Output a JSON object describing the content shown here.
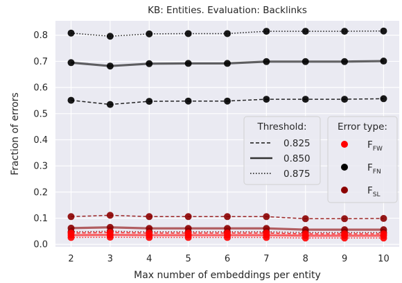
{
  "chart_data": {
    "type": "line",
    "title": "KB: Entities. Evaluation: Backlinks",
    "xlabel": "Max number of embeddings per entity",
    "ylabel": "Fraction of errors",
    "x": [
      2,
      3,
      4,
      5,
      6,
      7,
      8,
      9,
      10
    ],
    "xlim": [
      1.6,
      10.4
    ],
    "ylim": [
      -0.01,
      0.855
    ],
    "yticks": [
      "0.0",
      "0.1",
      "0.2",
      "0.3",
      "0.4",
      "0.5",
      "0.6",
      "0.7",
      "0.8"
    ],
    "grid": true,
    "background": "#eaeaf2",
    "error_types": [
      {
        "key": "FW",
        "base": "F",
        "sub": "FW",
        "color": "#ff0000"
      },
      {
        "key": "FN",
        "base": "F",
        "sub": "FN",
        "color": "#000000"
      },
      {
        "key": "SL",
        "base": "F",
        "sub": "SL",
        "color": "#8b0000"
      }
    ],
    "thresholds": [
      {
        "label": "0.825",
        "style": "dashed"
      },
      {
        "label": "0.850",
        "style": "solid"
      },
      {
        "label": "0.875",
        "style": "dotted"
      }
    ],
    "series": [
      {
        "error_type": "FN",
        "threshold": "0.825",
        "values": [
          0.551,
          0.535,
          0.547,
          0.548,
          0.548,
          0.555,
          0.555,
          0.555,
          0.557
        ]
      },
      {
        "error_type": "FN",
        "threshold": "0.850",
        "values": [
          0.695,
          0.682,
          0.691,
          0.692,
          0.692,
          0.699,
          0.699,
          0.699,
          0.701
        ]
      },
      {
        "error_type": "FN",
        "threshold": "0.875",
        "values": [
          0.808,
          0.796,
          0.805,
          0.806,
          0.806,
          0.815,
          0.815,
          0.815,
          0.816
        ]
      },
      {
        "error_type": "SL",
        "threshold": "0.825",
        "values": [
          0.106,
          0.111,
          0.106,
          0.106,
          0.106,
          0.106,
          0.098,
          0.098,
          0.099
        ]
      },
      {
        "error_type": "SL",
        "threshold": "0.850",
        "values": [
          0.062,
          0.065,
          0.061,
          0.061,
          0.061,
          0.061,
          0.056,
          0.056,
          0.056
        ]
      },
      {
        "error_type": "SL",
        "threshold": "0.875",
        "values": [
          0.048,
          0.05,
          0.048,
          0.048,
          0.048,
          0.048,
          0.045,
          0.045,
          0.045
        ]
      },
      {
        "error_type": "FW",
        "threshold": "0.825",
        "values": [
          0.043,
          0.045,
          0.043,
          0.043,
          0.043,
          0.043,
          0.04,
          0.04,
          0.04
        ]
      },
      {
        "error_type": "FW",
        "threshold": "0.850",
        "values": [
          0.035,
          0.036,
          0.035,
          0.035,
          0.035,
          0.035,
          0.033,
          0.033,
          0.033
        ]
      },
      {
        "error_type": "FW",
        "threshold": "0.875",
        "values": [
          0.026,
          0.027,
          0.026,
          0.026,
          0.026,
          0.026,
          0.024,
          0.024,
          0.024
        ]
      }
    ],
    "legend_placement": "center-right",
    "legend_threshold_title": "Threshold:",
    "legend_error_title": "Error type:"
  }
}
